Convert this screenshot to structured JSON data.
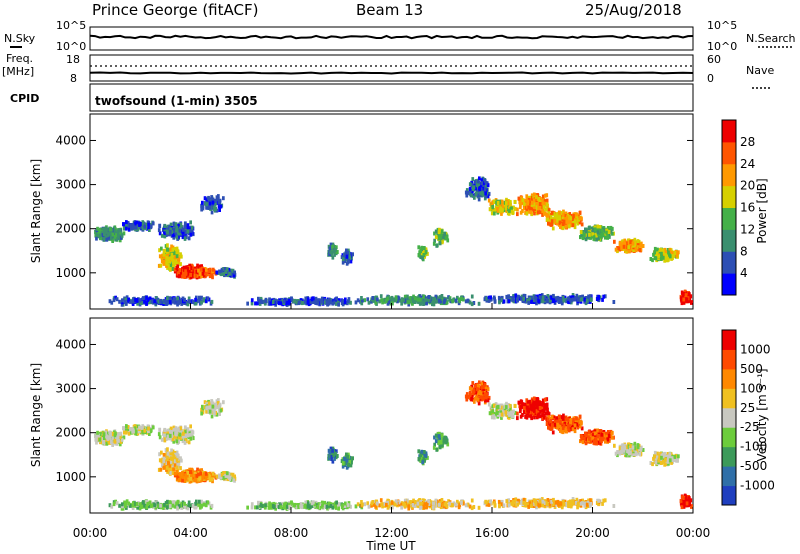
{
  "header": {
    "site": "Prince George (fitACF)",
    "beam": "Beam 13",
    "date": "25/Aug/2018"
  },
  "top_panels": {
    "nsky_label": "N.Sky",
    "nsearch_label": "N.Search",
    "freq_label_1": "Freq.",
    "freq_label_2": "[MHz]",
    "nave_label": "Nave",
    "cpid_label": "CPID",
    "program": "twofsound (1-min) 3505",
    "noise_ticks_left": [
      "10^5",
      "10^0"
    ],
    "noise_ticks_right": [
      "10^5",
      "10^0"
    ],
    "freq_ticks_left": [
      "18",
      "8"
    ],
    "freq_ticks_right": [
      "60",
      "0"
    ]
  },
  "chart_data": [
    {
      "type": "heatmap",
      "name": "power",
      "ylabel": "Slant Range [km]",
      "yticks": [
        "1000",
        "2000",
        "3000",
        "4000"
      ],
      "ylim": [
        180,
        4600
      ],
      "colorbar_label": "Power [dB]",
      "colorbar_ticks": [
        "4",
        "8",
        "12",
        "16",
        "20",
        "24",
        "28"
      ],
      "colorbar_range": [
        0,
        32
      ],
      "colors": [
        "#0000ff",
        "#2d4fb4",
        "#3a8f6f",
        "#44b048",
        "#d6d000",
        "#ff9900",
        "#ff5500",
        "#ee0000"
      ]
    },
    {
      "type": "heatmap",
      "name": "velocity",
      "ylabel": "Slant Range [km]",
      "yticks": [
        "1000",
        "2000",
        "3000",
        "4000"
      ],
      "ylim": [
        180,
        4600
      ],
      "xlabel": "Time UT",
      "xticks": [
        "00:00",
        "04:00",
        "08:00",
        "12:00",
        "16:00",
        "20:00",
        "00:00"
      ],
      "xlim": [
        0,
        24
      ],
      "colorbar_label": "Velocity [m s⁻¹]",
      "colorbar_ticks": [
        "1000",
        "500",
        "100",
        "25",
        "-25",
        "-100",
        "-500",
        "-1000"
      ],
      "colors": [
        "#1f3fbf",
        "#2f6fa8",
        "#3c9a5a",
        "#6ccc3c",
        "#c8c8c0",
        "#f0c020",
        "#ff8800",
        "#ff4a00",
        "#ee0000"
      ]
    }
  ]
}
